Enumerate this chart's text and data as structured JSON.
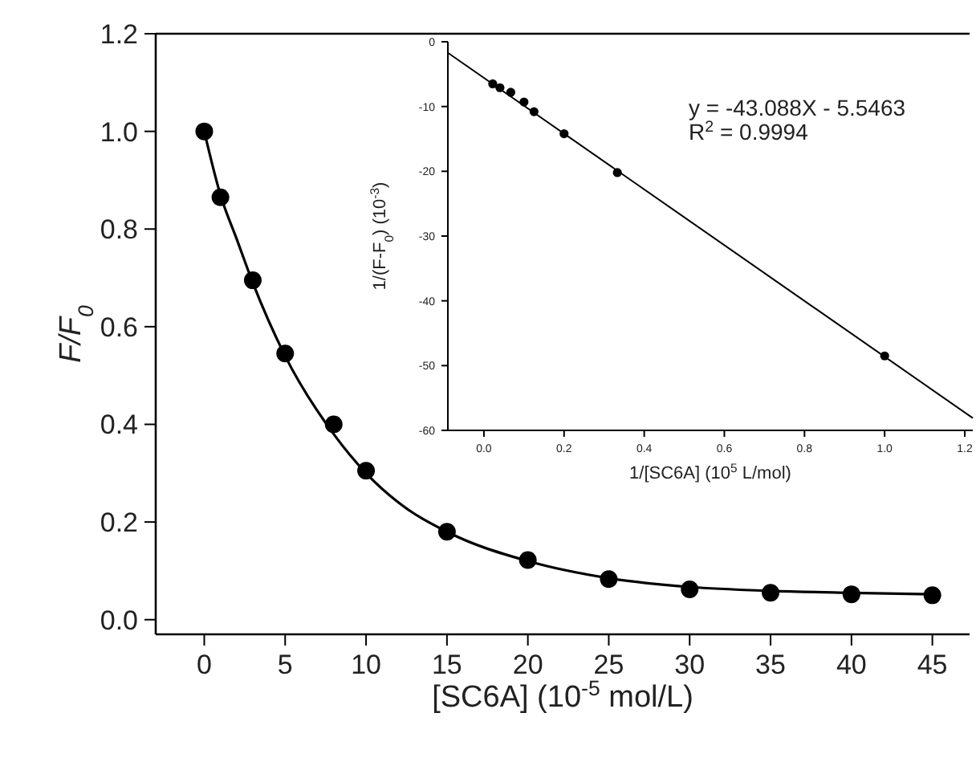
{
  "chart_data": [
    {
      "type": "scatter",
      "ylabel": "F/F$_{0}$",
      "xlabel": "[SC6A] (10$^{-5}$ mol/L)",
      "xlim": [
        -3,
        47.3
      ],
      "ylim": [
        -0.03,
        1.2
      ],
      "xticks": [
        0,
        5,
        10,
        15,
        20,
        25,
        30,
        35,
        40,
        45
      ],
      "yticks": [
        {
          "value": 0,
          "label": "0.0"
        },
        {
          "value": 0.2,
          "label": "0.2"
        },
        {
          "value": 0.4,
          "label": "0.4"
        },
        {
          "value": 0.6,
          "label": "0.6"
        },
        {
          "value": 0.8,
          "label": "0.8"
        },
        {
          "value": 1,
          "label": "1.0"
        },
        {
          "value": 1.2,
          "label": "1.2"
        }
      ],
      "series": [
        {
          "marker": "circle",
          "color": "#000000",
          "x": [
            0,
            1,
            3,
            5,
            8,
            10,
            15,
            20,
            25,
            30,
            35,
            40,
            45
          ],
          "values": [
            1.0,
            0.865,
            0.695,
            0.545,
            0.4,
            0.305,
            0.18,
            0.122,
            0.083,
            0.062,
            0.055,
            0.052,
            0.05
          ]
        },
        {
          "type": "line",
          "marker": "none",
          "color": "#000000",
          "x": [
            0,
            1,
            2,
            3,
            5,
            8,
            10,
            12,
            15,
            20,
            25,
            30,
            35,
            40,
            45
          ],
          "values": [
            1.0,
            0.87,
            0.78,
            0.69,
            0.54,
            0.38,
            0.3,
            0.24,
            0.18,
            0.12,
            0.085,
            0.067,
            0.059,
            0.055,
            0.052
          ]
        }
      ]
    },
    {
      "type": "scatter",
      "ylabel": "1/(F-F$_{0}$) (10$^{-3}$)",
      "xlabel": "1/[SC6A] (10$^{5}$ L/mol)",
      "xlim": [
        -0.09,
        1.22
      ],
      "ylim": [
        -60,
        0
      ],
      "xticks": [
        {
          "value": 0,
          "label": "0.0"
        },
        {
          "value": 0.2,
          "label": "0.2"
        },
        {
          "value": 0.4,
          "label": "0.4"
        },
        {
          "value": 0.6,
          "label": "0.6"
        },
        {
          "value": 0.8,
          "label": "0.8"
        },
        {
          "value": 1,
          "label": "1.0"
        },
        {
          "value": 1.2,
          "label": "1.2"
        }
      ],
      "yticks": [
        0,
        -10,
        -20,
        -30,
        -40,
        -50,
        -60
      ],
      "annotations": [
        "y = -43.088X - 5.5463",
        "R$^{2}$ = 0.9994"
      ],
      "series": [
        {
          "marker": "circle",
          "color": "#000000",
          "x": [
            0.022,
            0.04,
            0.067,
            0.1,
            0.125,
            0.2,
            0.333,
            1.0
          ],
          "values": [
            -6.5,
            -7.1,
            -7.8,
            -9.3,
            -10.8,
            -14.2,
            -20.2,
            -48.5
          ]
        },
        {
          "type": "line",
          "marker": "none",
          "color": "#000000",
          "x": [
            -0.09,
            1.22
          ],
          "values": [
            -1.7,
            -58.1
          ]
        }
      ]
    }
  ]
}
